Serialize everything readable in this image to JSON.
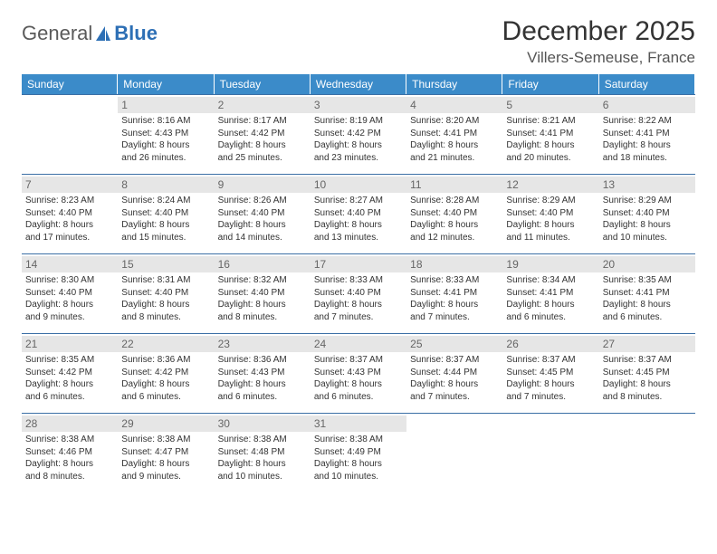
{
  "logo": {
    "text1": "General",
    "text2": "Blue"
  },
  "title": "December 2025",
  "location": "Villers-Semeuse, France",
  "colors": {
    "header_bg": "#3b8bc9",
    "header_text": "#ffffff",
    "daynum_bg": "#e6e6e6",
    "daynum_text": "#666666",
    "rule": "#3b6fa5",
    "body_text": "#333333",
    "logo_gray": "#5a5a5a",
    "logo_blue": "#2d6fb5"
  },
  "days_of_week": [
    "Sunday",
    "Monday",
    "Tuesday",
    "Wednesday",
    "Thursday",
    "Friday",
    "Saturday"
  ],
  "first_weekday_index": 1,
  "cells": [
    {
      "n": "",
      "sr": "",
      "ss": "",
      "dl1": "",
      "dl2": ""
    },
    {
      "n": "1",
      "sr": "Sunrise: 8:16 AM",
      "ss": "Sunset: 4:43 PM",
      "dl1": "Daylight: 8 hours",
      "dl2": "and 26 minutes."
    },
    {
      "n": "2",
      "sr": "Sunrise: 8:17 AM",
      "ss": "Sunset: 4:42 PM",
      "dl1": "Daylight: 8 hours",
      "dl2": "and 25 minutes."
    },
    {
      "n": "3",
      "sr": "Sunrise: 8:19 AM",
      "ss": "Sunset: 4:42 PM",
      "dl1": "Daylight: 8 hours",
      "dl2": "and 23 minutes."
    },
    {
      "n": "4",
      "sr": "Sunrise: 8:20 AM",
      "ss": "Sunset: 4:41 PM",
      "dl1": "Daylight: 8 hours",
      "dl2": "and 21 minutes."
    },
    {
      "n": "5",
      "sr": "Sunrise: 8:21 AM",
      "ss": "Sunset: 4:41 PM",
      "dl1": "Daylight: 8 hours",
      "dl2": "and 20 minutes."
    },
    {
      "n": "6",
      "sr": "Sunrise: 8:22 AM",
      "ss": "Sunset: 4:41 PM",
      "dl1": "Daylight: 8 hours",
      "dl2": "and 18 minutes."
    },
    {
      "n": "7",
      "sr": "Sunrise: 8:23 AM",
      "ss": "Sunset: 4:40 PM",
      "dl1": "Daylight: 8 hours",
      "dl2": "and 17 minutes."
    },
    {
      "n": "8",
      "sr": "Sunrise: 8:24 AM",
      "ss": "Sunset: 4:40 PM",
      "dl1": "Daylight: 8 hours",
      "dl2": "and 15 minutes."
    },
    {
      "n": "9",
      "sr": "Sunrise: 8:26 AM",
      "ss": "Sunset: 4:40 PM",
      "dl1": "Daylight: 8 hours",
      "dl2": "and 14 minutes."
    },
    {
      "n": "10",
      "sr": "Sunrise: 8:27 AM",
      "ss": "Sunset: 4:40 PM",
      "dl1": "Daylight: 8 hours",
      "dl2": "and 13 minutes."
    },
    {
      "n": "11",
      "sr": "Sunrise: 8:28 AM",
      "ss": "Sunset: 4:40 PM",
      "dl1": "Daylight: 8 hours",
      "dl2": "and 12 minutes."
    },
    {
      "n": "12",
      "sr": "Sunrise: 8:29 AM",
      "ss": "Sunset: 4:40 PM",
      "dl1": "Daylight: 8 hours",
      "dl2": "and 11 minutes."
    },
    {
      "n": "13",
      "sr": "Sunrise: 8:29 AM",
      "ss": "Sunset: 4:40 PM",
      "dl1": "Daylight: 8 hours",
      "dl2": "and 10 minutes."
    },
    {
      "n": "14",
      "sr": "Sunrise: 8:30 AM",
      "ss": "Sunset: 4:40 PM",
      "dl1": "Daylight: 8 hours",
      "dl2": "and 9 minutes."
    },
    {
      "n": "15",
      "sr": "Sunrise: 8:31 AM",
      "ss": "Sunset: 4:40 PM",
      "dl1": "Daylight: 8 hours",
      "dl2": "and 8 minutes."
    },
    {
      "n": "16",
      "sr": "Sunrise: 8:32 AM",
      "ss": "Sunset: 4:40 PM",
      "dl1": "Daylight: 8 hours",
      "dl2": "and 8 minutes."
    },
    {
      "n": "17",
      "sr": "Sunrise: 8:33 AM",
      "ss": "Sunset: 4:40 PM",
      "dl1": "Daylight: 8 hours",
      "dl2": "and 7 minutes."
    },
    {
      "n": "18",
      "sr": "Sunrise: 8:33 AM",
      "ss": "Sunset: 4:41 PM",
      "dl1": "Daylight: 8 hours",
      "dl2": "and 7 minutes."
    },
    {
      "n": "19",
      "sr": "Sunrise: 8:34 AM",
      "ss": "Sunset: 4:41 PM",
      "dl1": "Daylight: 8 hours",
      "dl2": "and 6 minutes."
    },
    {
      "n": "20",
      "sr": "Sunrise: 8:35 AM",
      "ss": "Sunset: 4:41 PM",
      "dl1": "Daylight: 8 hours",
      "dl2": "and 6 minutes."
    },
    {
      "n": "21",
      "sr": "Sunrise: 8:35 AM",
      "ss": "Sunset: 4:42 PM",
      "dl1": "Daylight: 8 hours",
      "dl2": "and 6 minutes."
    },
    {
      "n": "22",
      "sr": "Sunrise: 8:36 AM",
      "ss": "Sunset: 4:42 PM",
      "dl1": "Daylight: 8 hours",
      "dl2": "and 6 minutes."
    },
    {
      "n": "23",
      "sr": "Sunrise: 8:36 AM",
      "ss": "Sunset: 4:43 PM",
      "dl1": "Daylight: 8 hours",
      "dl2": "and 6 minutes."
    },
    {
      "n": "24",
      "sr": "Sunrise: 8:37 AM",
      "ss": "Sunset: 4:43 PM",
      "dl1": "Daylight: 8 hours",
      "dl2": "and 6 minutes."
    },
    {
      "n": "25",
      "sr": "Sunrise: 8:37 AM",
      "ss": "Sunset: 4:44 PM",
      "dl1": "Daylight: 8 hours",
      "dl2": "and 7 minutes."
    },
    {
      "n": "26",
      "sr": "Sunrise: 8:37 AM",
      "ss": "Sunset: 4:45 PM",
      "dl1": "Daylight: 8 hours",
      "dl2": "and 7 minutes."
    },
    {
      "n": "27",
      "sr": "Sunrise: 8:37 AM",
      "ss": "Sunset: 4:45 PM",
      "dl1": "Daylight: 8 hours",
      "dl2": "and 8 minutes."
    },
    {
      "n": "28",
      "sr": "Sunrise: 8:38 AM",
      "ss": "Sunset: 4:46 PM",
      "dl1": "Daylight: 8 hours",
      "dl2": "and 8 minutes."
    },
    {
      "n": "29",
      "sr": "Sunrise: 8:38 AM",
      "ss": "Sunset: 4:47 PM",
      "dl1": "Daylight: 8 hours",
      "dl2": "and 9 minutes."
    },
    {
      "n": "30",
      "sr": "Sunrise: 8:38 AM",
      "ss": "Sunset: 4:48 PM",
      "dl1": "Daylight: 8 hours",
      "dl2": "and 10 minutes."
    },
    {
      "n": "31",
      "sr": "Sunrise: 8:38 AM",
      "ss": "Sunset: 4:49 PM",
      "dl1": "Daylight: 8 hours",
      "dl2": "and 10 minutes."
    },
    {
      "n": "",
      "sr": "",
      "ss": "",
      "dl1": "",
      "dl2": ""
    },
    {
      "n": "",
      "sr": "",
      "ss": "",
      "dl1": "",
      "dl2": ""
    },
    {
      "n": "",
      "sr": "",
      "ss": "",
      "dl1": "",
      "dl2": ""
    }
  ]
}
